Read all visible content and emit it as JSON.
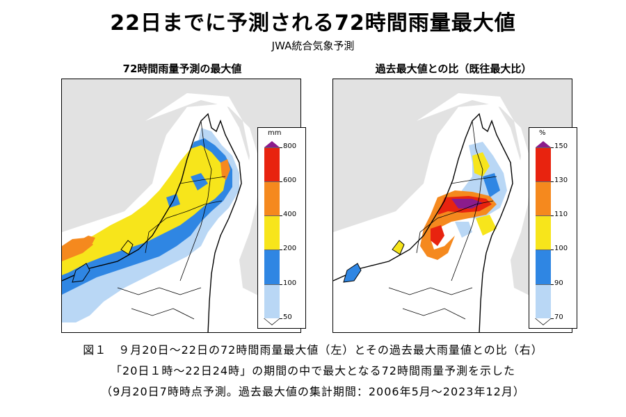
{
  "title": "22日までに予測される72時間雨量最大値",
  "subtitle": "JWA統合気象予測",
  "panels": {
    "left": {
      "title": "72時間雨量予測の最大値",
      "legend_unit": "mm",
      "legend_labels": [
        "800",
        "600",
        "400",
        "200",
        "100",
        "50"
      ]
    },
    "right": {
      "title": "過去最大値との比（既往最大比）",
      "legend_unit": "%",
      "legend_labels": [
        "150",
        "130",
        "110",
        "100",
        "90",
        "70"
      ]
    }
  },
  "legend_colors": [
    "#e8230f",
    "#f5891e",
    "#f7e51b",
    "#2f86e3",
    "#b9d7f5"
  ],
  "caption": {
    "line1": "図１　９月20日～22日の72時間雨量最大値（左）とその過去最大雨量値との比（右）",
    "line2": "「20日１時～22日24時」の期間の中で最大となる72時間雨量予測を示した",
    "line3": "（9月20日7時時点予測。過去最大値の集計期間：2006年5月～2023年12月）"
  }
}
